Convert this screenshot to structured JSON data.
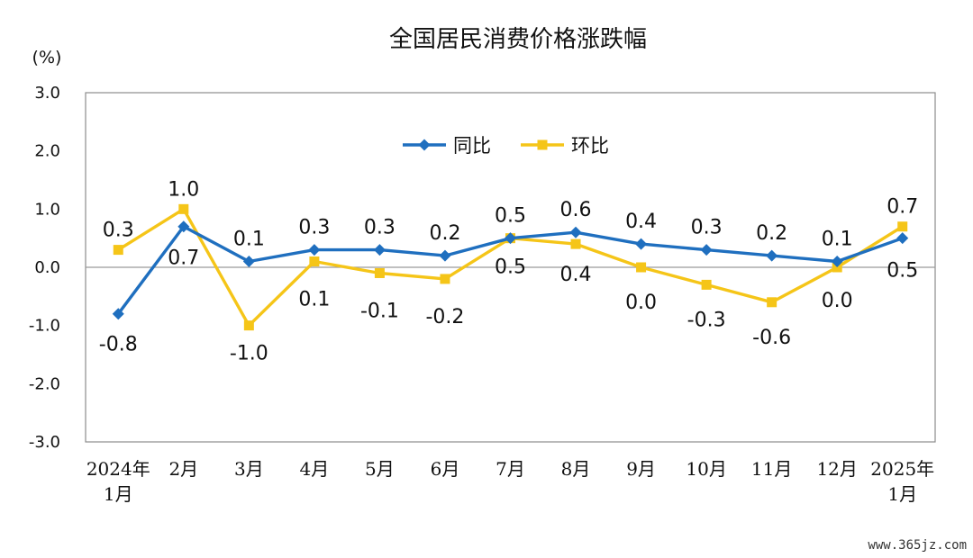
{
  "chart_data": {
    "type": "line",
    "title": "全国居民消费价格涨跌幅",
    "ylabel": "(%)",
    "ylim": [
      -3.0,
      3.0
    ],
    "yticks": [
      "3.0",
      "2.0",
      "1.0",
      "0.0",
      "-1.0",
      "-2.0",
      "-3.0"
    ],
    "categories": [
      [
        "2024年",
        "1月"
      ],
      [
        "2月"
      ],
      [
        "3月"
      ],
      [
        "4月"
      ],
      [
        "5月"
      ],
      [
        "6月"
      ],
      [
        "7月"
      ],
      [
        "8月"
      ],
      [
        "9月"
      ],
      [
        "10月"
      ],
      [
        "11月"
      ],
      [
        "12月"
      ],
      [
        "2025年",
        "1月"
      ]
    ],
    "legend_position": "top-center",
    "grid": false,
    "series": [
      {
        "name": "同比",
        "color": "#1f6fbf",
        "marker": "diamond",
        "values": [
          -0.8,
          0.7,
          0.1,
          0.3,
          0.3,
          0.2,
          0.5,
          0.6,
          0.4,
          0.3,
          0.2,
          0.1,
          0.5
        ],
        "labels": [
          "-0.8",
          "0.7",
          "0.1",
          "0.3",
          "0.3",
          "0.2",
          "0.5",
          "0.6",
          "0.4",
          "0.3",
          "0.2",
          "0.1",
          "0.5"
        ]
      },
      {
        "name": "环比",
        "color": "#f5c518",
        "marker": "square",
        "values": [
          0.3,
          1.0,
          -1.0,
          0.1,
          -0.1,
          -0.2,
          0.5,
          0.4,
          0.0,
          -0.3,
          -0.6,
          0.0,
          0.7
        ],
        "labels": [
          "0.3",
          "1.0",
          "-1.0",
          "0.1",
          "-0.1",
          "-0.2",
          "0.5",
          "0.4",
          "0.0",
          "-0.3",
          "-0.6",
          "0.0",
          "0.7"
        ]
      }
    ]
  },
  "watermark": "www.365jz.com"
}
